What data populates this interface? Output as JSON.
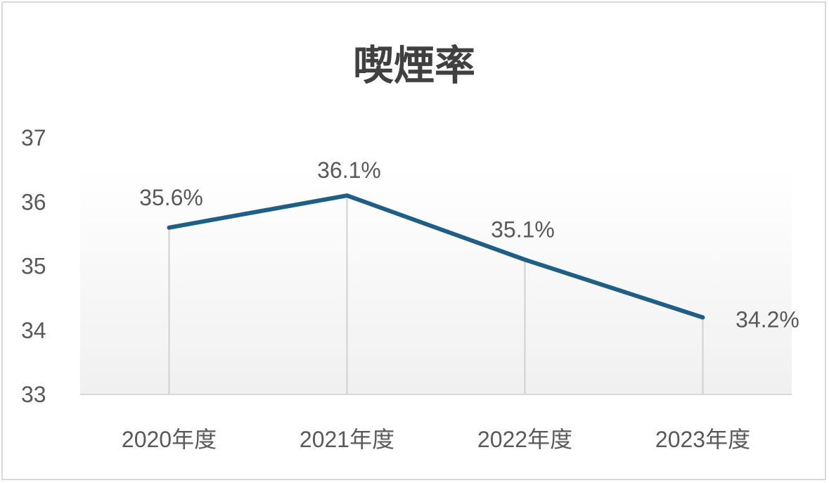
{
  "chart_data": {
    "type": "line",
    "title": "喫煙率",
    "categories": [
      "2020年度",
      "2021年度",
      "2022年度",
      "2023年度"
    ],
    "values": [
      35.6,
      36.1,
      35.1,
      34.2
    ],
    "data_labels": [
      "35.6%",
      "36.1%",
      "35.1%",
      "34.2%"
    ],
    "ylim": [
      33,
      37
    ],
    "yticks": [
      "33",
      "34",
      "35",
      "36",
      "37"
    ],
    "xlabel": "",
    "ylabel": "",
    "grid": false,
    "drop_lines": true,
    "line_color": "#1f5f86",
    "plot_fill_top": "#ffffff",
    "plot_fill_bottom": "#f0f0f0"
  }
}
